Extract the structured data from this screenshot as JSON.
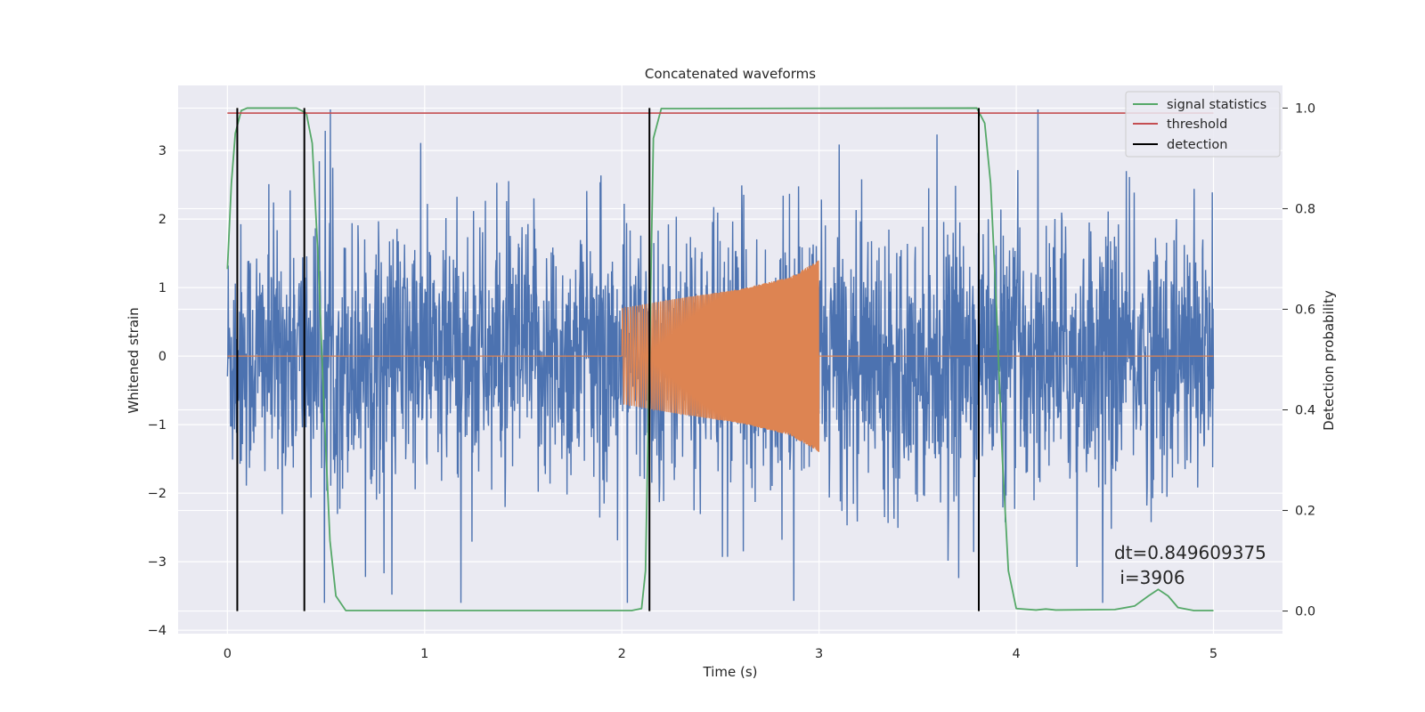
{
  "chart_data": {
    "type": "line",
    "title": "Concatenated waveforms",
    "xlabel": "Time (s)",
    "ylabel": "Whitened strain",
    "y2label": "Detection probability",
    "xlim": [
      -0.25,
      5.35
    ],
    "ylim": [
      -4.05,
      3.95
    ],
    "y2lim": [
      -0.045,
      1.045
    ],
    "xticks": [
      "0",
      "1",
      "2",
      "3",
      "4",
      "5"
    ],
    "yticks": [
      "3",
      "2",
      "1",
      "0",
      "−1",
      "−2",
      "−3",
      "−4"
    ],
    "y2ticks": [
      "1.0",
      "0.8",
      "0.6",
      "0.4",
      "0.2",
      "0.0"
    ],
    "grid": true,
    "legend_position": "top-right",
    "legend": [
      {
        "label": "signal statistics",
        "color": "#55a868"
      },
      {
        "label": "threshold",
        "color": "#c44e52"
      },
      {
        "label": "detection",
        "color": "#000000"
      }
    ],
    "series": [
      {
        "kind": "noise",
        "color": "#4c72b0",
        "x_range": [
          0,
          5
        ],
        "amplitude_envelope": 3.6,
        "note_points": 2500
      },
      {
        "kind": "injected_chirp",
        "color": "#dd8452",
        "x_range": [
          2,
          3
        ],
        "amplitude": [
          [
            2.0,
            0.7
          ],
          [
            2.3,
            0.85
          ],
          [
            2.6,
            0.98
          ],
          [
            2.85,
            1.15
          ],
          [
            3.0,
            1.4
          ]
        ],
        "baseline": 0
      },
      {
        "name": "signal statistics",
        "axis": "right",
        "color": "#55a868",
        "points": [
          [
            0.0,
            0.68
          ],
          [
            0.02,
            0.85
          ],
          [
            0.04,
            0.95
          ],
          [
            0.07,
            0.995
          ],
          [
            0.1,
            1.0
          ],
          [
            0.35,
            1.0
          ],
          [
            0.4,
            0.99
          ],
          [
            0.43,
            0.93
          ],
          [
            0.46,
            0.7
          ],
          [
            0.49,
            0.4
          ],
          [
            0.52,
            0.14
          ],
          [
            0.55,
            0.03
          ],
          [
            0.6,
            0.001
          ],
          [
            2.05,
            0.001
          ],
          [
            2.1,
            0.005
          ],
          [
            2.12,
            0.08
          ],
          [
            2.14,
            0.5
          ],
          [
            2.16,
            0.94
          ],
          [
            2.2,
            0.999
          ],
          [
            3.8,
            1.0
          ],
          [
            3.84,
            0.97
          ],
          [
            3.87,
            0.85
          ],
          [
            3.9,
            0.6
          ],
          [
            3.93,
            0.3
          ],
          [
            3.96,
            0.08
          ],
          [
            4.0,
            0.005
          ],
          [
            4.1,
            0.002
          ],
          [
            4.15,
            0.004
          ],
          [
            4.2,
            0.002
          ],
          [
            4.5,
            0.003
          ],
          [
            4.6,
            0.01
          ],
          [
            4.67,
            0.03
          ],
          [
            4.72,
            0.043
          ],
          [
            4.77,
            0.03
          ],
          [
            4.82,
            0.007
          ],
          [
            4.9,
            0.001
          ],
          [
            5.0,
            0.001
          ]
        ]
      },
      {
        "name": "threshold",
        "axis": "right",
        "color": "#c44e52",
        "points": [
          [
            0,
            0.99
          ],
          [
            5,
            0.99
          ]
        ]
      }
    ],
    "detections": [
      0.05,
      0.39,
      2.14,
      3.81
    ],
    "annotation": {
      "line1": "dt=0.849609375",
      "line2": " i=3906"
    }
  }
}
